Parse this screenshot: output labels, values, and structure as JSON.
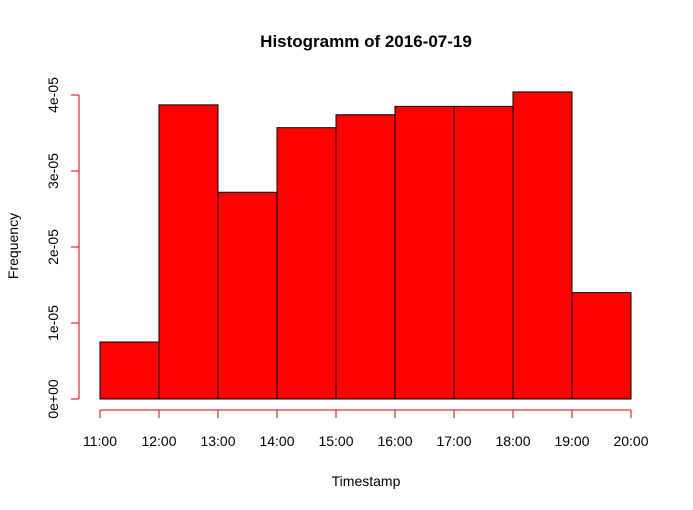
{
  "chart_data": {
    "type": "bar",
    "title": "Histogramm of 2016-07-19",
    "xlabel": "Timestamp",
    "ylabel": "Frequency",
    "x_ticks": [
      "11:00",
      "12:00",
      "13:00",
      "14:00",
      "15:00",
      "16:00",
      "17:00",
      "18:00",
      "19:00",
      "20:00"
    ],
    "y_ticks": [
      {
        "value": 0,
        "label": "0e+00"
      },
      {
        "value": 1e-05,
        "label": "1e-05"
      },
      {
        "value": 2e-05,
        "label": "2e-05"
      },
      {
        "value": 3e-05,
        "label": "3e-05"
      },
      {
        "value": 4e-05,
        "label": "4e-05"
      }
    ],
    "bins": [
      {
        "start": "11:00",
        "end": "12:00",
        "value": 7.5e-06
      },
      {
        "start": "12:00",
        "end": "13:00",
        "value": 3.87e-05
      },
      {
        "start": "13:00",
        "end": "14:00",
        "value": 2.72e-05
      },
      {
        "start": "14:00",
        "end": "15:00",
        "value": 3.57e-05
      },
      {
        "start": "15:00",
        "end": "16:00",
        "value": 3.74e-05
      },
      {
        "start": "16:00",
        "end": "17:00",
        "value": 3.85e-05
      },
      {
        "start": "17:00",
        "end": "18:00",
        "value": 3.85e-05
      },
      {
        "start": "18:00",
        "end": "19:00",
        "value": 4.04e-05
      },
      {
        "start": "19:00",
        "end": "20:00",
        "value": 1.4e-05
      }
    ],
    "ylim": [
      0,
      4e-05
    ],
    "grid": false,
    "colors": {
      "bar_fill": "#ff0000",
      "bar_border": "#000000",
      "x_axis": "#d40000",
      "y_axis": "#d40000"
    }
  }
}
